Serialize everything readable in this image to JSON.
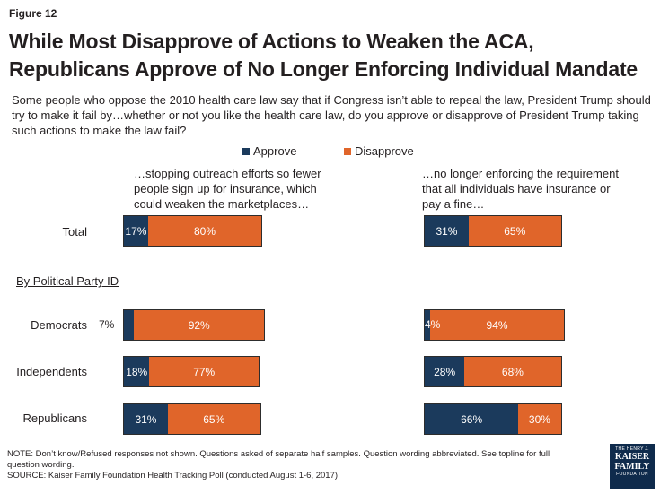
{
  "figure_label": "Figure 12",
  "title_line1": "While Most Disapprove of Actions to Weaken the ACA,",
  "title_line2": "Republicans Approve of No Longer Enforcing Individual Mandate",
  "subtitle": "Some people who oppose the 2010 health care law say that if Congress isn’t able to repeal the law, President Trump should try to make it fail by…whether or not you like the health care law, do you approve or disapprove of President Trump taking such actions to make the law fail?",
  "legend": {
    "approve": "Approve",
    "disapprove": "Disapprove"
  },
  "colors": {
    "approve": "#1b3a5c",
    "disapprove": "#e0652a"
  },
  "group_heading": "By Political Party ID",
  "chart_data": {
    "type": "bar",
    "orientation": "horizontal",
    "stacked": true,
    "categories": [
      "Total",
      "Democrats",
      "Independents",
      "Republicans"
    ],
    "panels": [
      {
        "label_line1": "…stopping outreach efforts so fewer",
        "label_line2": "people sign up for insurance, which",
        "label_line3": "could weaken the marketplaces…",
        "series": [
          {
            "name": "Approve",
            "values": [
              17,
              7,
              18,
              31
            ]
          },
          {
            "name": "Disapprove",
            "values": [
              80,
              92,
              77,
              65
            ]
          }
        ]
      },
      {
        "label_line1": "…no longer enforcing the requirement",
        "label_line2": "that all individuals have insurance or",
        "label_line3": "pay a fine…",
        "series": [
          {
            "name": "Approve",
            "values": [
              31,
              4,
              28,
              66
            ]
          },
          {
            "name": "Disapprove",
            "values": [
              65,
              94,
              68,
              30
            ]
          }
        ]
      }
    ],
    "legend_position": "top-center",
    "grid": false
  },
  "note_line1": "NOTE: Don’t know/Refused responses not shown. Questions asked of separate half samples. Question wording abbreviated. See topline for full",
  "note_line2": "question wording.",
  "source": "SOURCE: Kaiser Family Foundation Health Tracking Poll (conducted August 1-6, 2017)",
  "logo": {
    "line1": "THE HENRY J.",
    "line2": "KAISER",
    "line3": "FAMILY",
    "line4": "FOUNDATION"
  }
}
